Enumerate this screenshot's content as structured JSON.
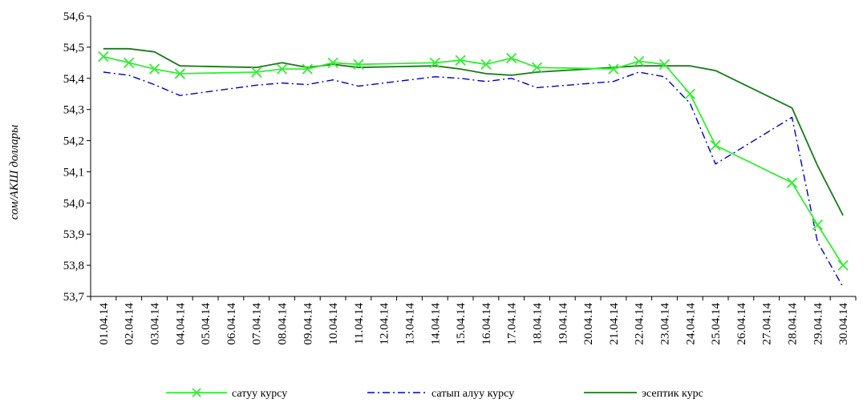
{
  "chart_data": {
    "type": "line",
    "title": "",
    "xlabel": "",
    "ylabel": "сом/АКШ доллары",
    "ylim": [
      53.7,
      54.6
    ],
    "yticks": [
      "53,7",
      "53,8",
      "53,9",
      "54,0",
      "54,1",
      "54,2",
      "54,3",
      "54,4",
      "54,5",
      "54,6"
    ],
    "grid": false,
    "legend_position": "bottom",
    "categories": [
      "01.04.14",
      "02.04.14",
      "03.04.14",
      "04.04.14",
      "05.04.14",
      "06.04.14",
      "07.04.14",
      "08.04.14",
      "09.04.14",
      "10.04.14",
      "11.04.14",
      "12.04.14",
      "13.04.14",
      "14.04.14",
      "15.04.14",
      "16.04.14",
      "17.04.14",
      "18.04.14",
      "19.04.14",
      "20.04.14",
      "21.04.14",
      "22.04.14",
      "23.04.14",
      "24.04.14",
      "25.04.14",
      "26.04.14",
      "27.04.14",
      "28.04.14",
      "29.04.14",
      "30.04.14"
    ],
    "series": [
      {
        "name": "сатуу курсу",
        "color": "#33ee33",
        "line_style": "solid",
        "marker": "x",
        "points": [
          [
            0,
            54.47
          ],
          [
            1,
            54.45
          ],
          [
            2,
            54.43
          ],
          [
            3,
            54.415
          ],
          [
            6,
            54.42
          ],
          [
            7,
            54.43
          ],
          [
            8,
            54.43
          ],
          [
            9,
            54.45
          ],
          [
            10,
            54.445
          ],
          [
            13,
            54.45
          ],
          [
            14,
            54.458
          ],
          [
            15,
            54.445
          ],
          [
            16,
            54.465
          ],
          [
            17,
            54.435
          ],
          [
            20,
            54.43
          ],
          [
            21,
            54.455
          ],
          [
            22,
            54.445
          ],
          [
            23,
            54.35
          ],
          [
            24,
            54.185
          ],
          [
            27,
            54.065
          ],
          [
            28,
            53.93
          ],
          [
            29,
            53.8
          ]
        ]
      },
      {
        "name": "сатып алуу курсу",
        "color": "#0000cc",
        "line_style": "dash-dot",
        "marker": "none",
        "points": [
          [
            0,
            54.42
          ],
          [
            1,
            54.41
          ],
          [
            2,
            54.38
          ],
          [
            3,
            54.345
          ],
          [
            6,
            54.378
          ],
          [
            7,
            54.385
          ],
          [
            8,
            54.38
          ],
          [
            9,
            54.395
          ],
          [
            10,
            54.375
          ],
          [
            13,
            54.405
          ],
          [
            14,
            54.4
          ],
          [
            15,
            54.39
          ],
          [
            16,
            54.4
          ],
          [
            17,
            54.37
          ],
          [
            20,
            54.39
          ],
          [
            21,
            54.42
          ],
          [
            22,
            54.405
          ],
          [
            23,
            54.32
          ],
          [
            24,
            54.125
          ],
          [
            27,
            54.275
          ],
          [
            28,
            53.875
          ],
          [
            29,
            53.73
          ]
        ]
      },
      {
        "name": "эсептик курс",
        "color": "#1a7a1a",
        "line_style": "solid",
        "marker": "none",
        "points": [
          [
            0,
            54.495
          ],
          [
            1,
            54.495
          ],
          [
            2,
            54.485
          ],
          [
            3,
            54.44
          ],
          [
            6,
            54.435
          ],
          [
            7,
            54.45
          ],
          [
            8,
            54.435
          ],
          [
            9,
            54.445
          ],
          [
            10,
            54.435
          ],
          [
            13,
            54.44
          ],
          [
            14,
            54.43
          ],
          [
            15,
            54.415
          ],
          [
            16,
            54.41
          ],
          [
            17,
            54.42
          ],
          [
            20,
            54.435
          ],
          [
            21,
            54.44
          ],
          [
            22,
            54.44
          ],
          [
            23,
            54.44
          ],
          [
            24,
            54.425
          ],
          [
            27,
            54.305
          ],
          [
            28,
            54.12
          ],
          [
            29,
            53.96
          ]
        ]
      }
    ]
  }
}
